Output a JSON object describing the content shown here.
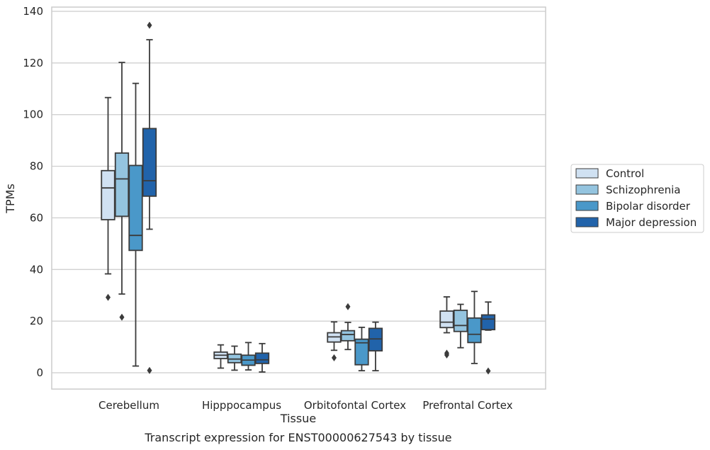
{
  "chart_data": {
    "type": "boxplot",
    "title": "",
    "caption": "Transcript expression for ENST00000627543 by tissue",
    "xlabel": "Tissue",
    "ylabel": "TPMs",
    "ylim": [
      -6,
      141
    ],
    "yticks": [
      0,
      20,
      40,
      60,
      80,
      100,
      120,
      140
    ],
    "grid": "horizontal",
    "legend_position": "right",
    "categories": [
      "Cerebellum",
      "Hipppocampus",
      "Orbitofontal Cortex",
      "Prefrontal Cortex"
    ],
    "series": [
      {
        "name": "Control",
        "color": "#d0e1f2",
        "boxes": [
          {
            "whislo": 38.3,
            "q1": 59.3,
            "med": 71.6,
            "q3": 78.3,
            "whishi": 106.6,
            "fliers": [
              29.2
            ]
          },
          {
            "whislo": 1.8,
            "q1": 5.5,
            "med": 6.8,
            "q3": 8.0,
            "whishi": 10.8,
            "fliers": []
          },
          {
            "whislo": 8.7,
            "q1": 11.9,
            "med": 13.9,
            "q3": 15.5,
            "whishi": 19.7,
            "fliers": [
              5.8
            ]
          },
          {
            "whislo": 15.5,
            "q1": 17.5,
            "med": 19.6,
            "q3": 23.9,
            "whishi": 29.4,
            "fliers": [
              6.9,
              7.6
            ]
          }
        ]
      },
      {
        "name": "Schizophrenia",
        "color": "#94c4df",
        "boxes": [
          {
            "whislo": 30.5,
            "q1": 60.6,
            "med": 75.1,
            "q3": 85.1,
            "whishi": 120.2,
            "fliers": [
              21.5
            ]
          },
          {
            "whislo": 1.0,
            "q1": 3.9,
            "med": 5.3,
            "q3": 7.2,
            "whishi": 10.3,
            "fliers": []
          },
          {
            "whislo": 9.0,
            "q1": 12.4,
            "med": 14.8,
            "q3": 16.3,
            "whishi": 19.5,
            "fliers": [
              25.6
            ]
          },
          {
            "whislo": 9.7,
            "q1": 16.0,
            "med": 18.3,
            "q3": 24.2,
            "whishi": 26.5,
            "fliers": []
          }
        ]
      },
      {
        "name": "Bipolar disorder",
        "color": "#4a98c9",
        "boxes": [
          {
            "whislo": 2.6,
            "q1": 47.4,
            "med": 53.2,
            "q3": 80.3,
            "whishi": 112.1,
            "fliers": []
          },
          {
            "whislo": 1.1,
            "q1": 2.9,
            "med": 4.9,
            "q3": 6.8,
            "whishi": 11.7,
            "fliers": []
          },
          {
            "whislo": 0.8,
            "q1": 3.1,
            "med": 11.6,
            "q3": 13.0,
            "whishi": 17.6,
            "fliers": []
          },
          {
            "whislo": 3.6,
            "q1": 11.7,
            "med": 14.9,
            "q3": 21.2,
            "whishi": 31.5,
            "fliers": []
          }
        ]
      },
      {
        "name": "Major depression",
        "color": "#2163aa",
        "boxes": [
          {
            "whislo": 55.6,
            "q1": 68.4,
            "med": 74.4,
            "q3": 94.6,
            "whishi": 129.0,
            "fliers": [
              0.9,
              134.6
            ]
          },
          {
            "whislo": 0.3,
            "q1": 3.6,
            "med": 5.0,
            "q3": 7.6,
            "whishi": 11.3,
            "fliers": []
          },
          {
            "whislo": 0.8,
            "q1": 8.5,
            "med": 13.1,
            "q3": 17.2,
            "whishi": 19.6,
            "fliers": []
          },
          {
            "whislo": 16.5,
            "q1": 16.7,
            "med": 20.8,
            "q3": 22.4,
            "whishi": 27.4,
            "fliers": [
              0.7
            ]
          }
        ]
      }
    ]
  }
}
